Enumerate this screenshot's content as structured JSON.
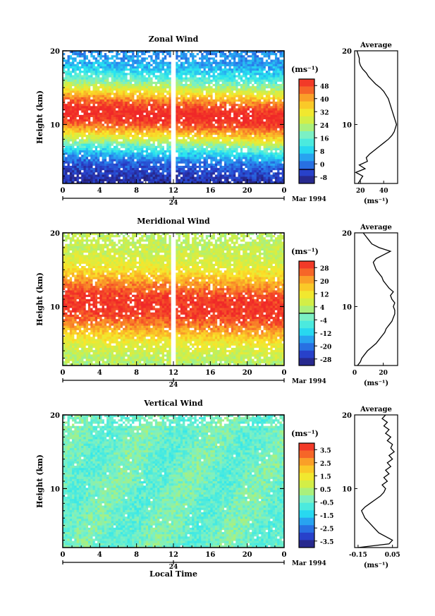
{
  "figure": {
    "date_label": "Mar 1994",
    "xlabel": "Local Time",
    "ylabel": "Height (km)",
    "unit_label": "(ms⁻¹)",
    "avg_title": "Average",
    "x_ticks": [
      "0",
      "4",
      "8",
      "12",
      "16",
      "20",
      "0"
    ],
    "y_ticks": [
      "20",
      "10"
    ],
    "day_label": "24"
  },
  "chart_data": [
    {
      "type": "heatmap",
      "title": "Zonal Wind",
      "xlabel": "",
      "ylabel": "Height (km)",
      "xlim": [
        0,
        24
      ],
      "ylim": [
        2,
        20
      ],
      "colorbar": {
        "ticks": [
          "48",
          "40",
          "32",
          "24",
          "16",
          "8",
          "0",
          "-8"
        ],
        "range": [
          -8,
          52
        ],
        "zero_line": 0
      },
      "pattern": {
        "jet_center_km": [
          11.5,
          10.5
        ],
        "jet_peak": 52,
        "surface_value": -6,
        "top_value": 14,
        "gaps": true
      },
      "average_profile": {
        "xlim": [
          15,
          52
        ],
        "xticks": [
          "20",
          "40"
        ],
        "height_km": [
          2,
          2.5,
          3,
          3.5,
          4,
          4.5,
          5,
          5.5,
          6,
          6.5,
          7,
          7.5,
          8,
          8.5,
          9,
          9.5,
          10,
          10.5,
          11,
          11.5,
          12,
          12.5,
          13,
          13.5,
          14,
          14.5,
          15,
          15.5,
          16,
          16.5,
          17,
          17.5,
          18,
          18.5,
          19,
          19.5,
          20
        ],
        "values": [
          18,
          20,
          22,
          16,
          24,
          19,
          26,
          25,
          28,
          32,
          36,
          40,
          44,
          47,
          49,
          50,
          51,
          50,
          49,
          48,
          47,
          46,
          45,
          44,
          42,
          40,
          37,
          33,
          30,
          27,
          25,
          22,
          20,
          19,
          19,
          18,
          17
        ]
      }
    },
    {
      "type": "heatmap",
      "title": "Meridional Wind",
      "xlabel": "",
      "ylabel": "Height (km)",
      "xlim": [
        0,
        24
      ],
      "ylim": [
        2,
        20
      ],
      "colorbar": {
        "ticks": [
          "28",
          "20",
          "12",
          "4",
          "-4",
          "-12",
          "-20",
          "-28"
        ],
        "range": [
          -32,
          32
        ],
        "zero_line": 0
      },
      "pattern": {
        "jet_center_km": [
          10.5,
          9.5
        ],
        "jet_peak": 30,
        "surface_value": 2,
        "top_value": 14,
        "gaps": true
      },
      "average_profile": {
        "xlim": [
          0,
          30
        ],
        "xticks": [
          "0",
          "20"
        ],
        "height_km": [
          2,
          2.5,
          3,
          3.5,
          4,
          4.5,
          5,
          5.5,
          6,
          6.5,
          7,
          7.5,
          8,
          8.5,
          9,
          9.5,
          10,
          10.5,
          11,
          11.5,
          12,
          12.5,
          13,
          13.5,
          14,
          14.5,
          15,
          15.5,
          16,
          16.5,
          17,
          17.5,
          18,
          18.5,
          19,
          19.5,
          20
        ],
        "values": [
          2,
          4,
          5,
          7,
          9,
          12,
          15,
          17,
          19,
          21,
          22,
          24,
          26,
          27,
          28,
          28,
          27,
          28,
          26,
          25,
          27,
          24,
          22,
          20,
          19,
          17,
          15,
          14,
          13,
          15,
          20,
          25,
          17,
          12,
          10,
          8,
          6
        ]
      }
    },
    {
      "type": "heatmap",
      "title": "Vertical Wind",
      "xlabel": "Local Time",
      "ylabel": "Height (km)",
      "xlim": [
        0,
        24
      ],
      "ylim": [
        2,
        20
      ],
      "colorbar": {
        "ticks": [
          "3.5",
          "2.5",
          "1.5",
          "0.5",
          "-0.5",
          "-1.5",
          "-2.5",
          "-3.5"
        ],
        "range": [
          -4,
          4
        ]
      },
      "pattern": {
        "base_value": -0.4,
        "noise": 0.5,
        "gaps": true
      },
      "average_profile": {
        "xlim": [
          -0.17,
          0.08
        ],
        "xticks": [
          "-0.15",
          "0.05"
        ],
        "height_km": [
          2,
          2.5,
          3,
          3.5,
          4,
          4.5,
          5,
          5.5,
          6,
          6.5,
          7,
          7.5,
          8,
          8.5,
          9,
          9.5,
          10,
          10.5,
          11,
          11.5,
          12,
          12.5,
          13,
          13.5,
          14,
          14.5,
          15,
          15.5,
          16,
          16.5,
          17,
          17.5,
          18,
          18.5,
          19,
          19.5,
          20
        ],
        "values": [
          -0.15,
          0.03,
          0.05,
          0.01,
          -0.03,
          -0.05,
          -0.07,
          -0.09,
          -0.11,
          -0.12,
          -0.13,
          -0.11,
          -0.08,
          -0.05,
          -0.02,
          0.0,
          0.01,
          -0.01,
          0.02,
          0.0,
          0.03,
          0.01,
          0.04,
          0.02,
          0.05,
          0.03,
          0.06,
          0.04,
          0.05,
          0.02,
          0.04,
          0.01,
          0.03,
          0.0,
          0.02,
          -0.01,
          0.01
        ]
      }
    }
  ]
}
